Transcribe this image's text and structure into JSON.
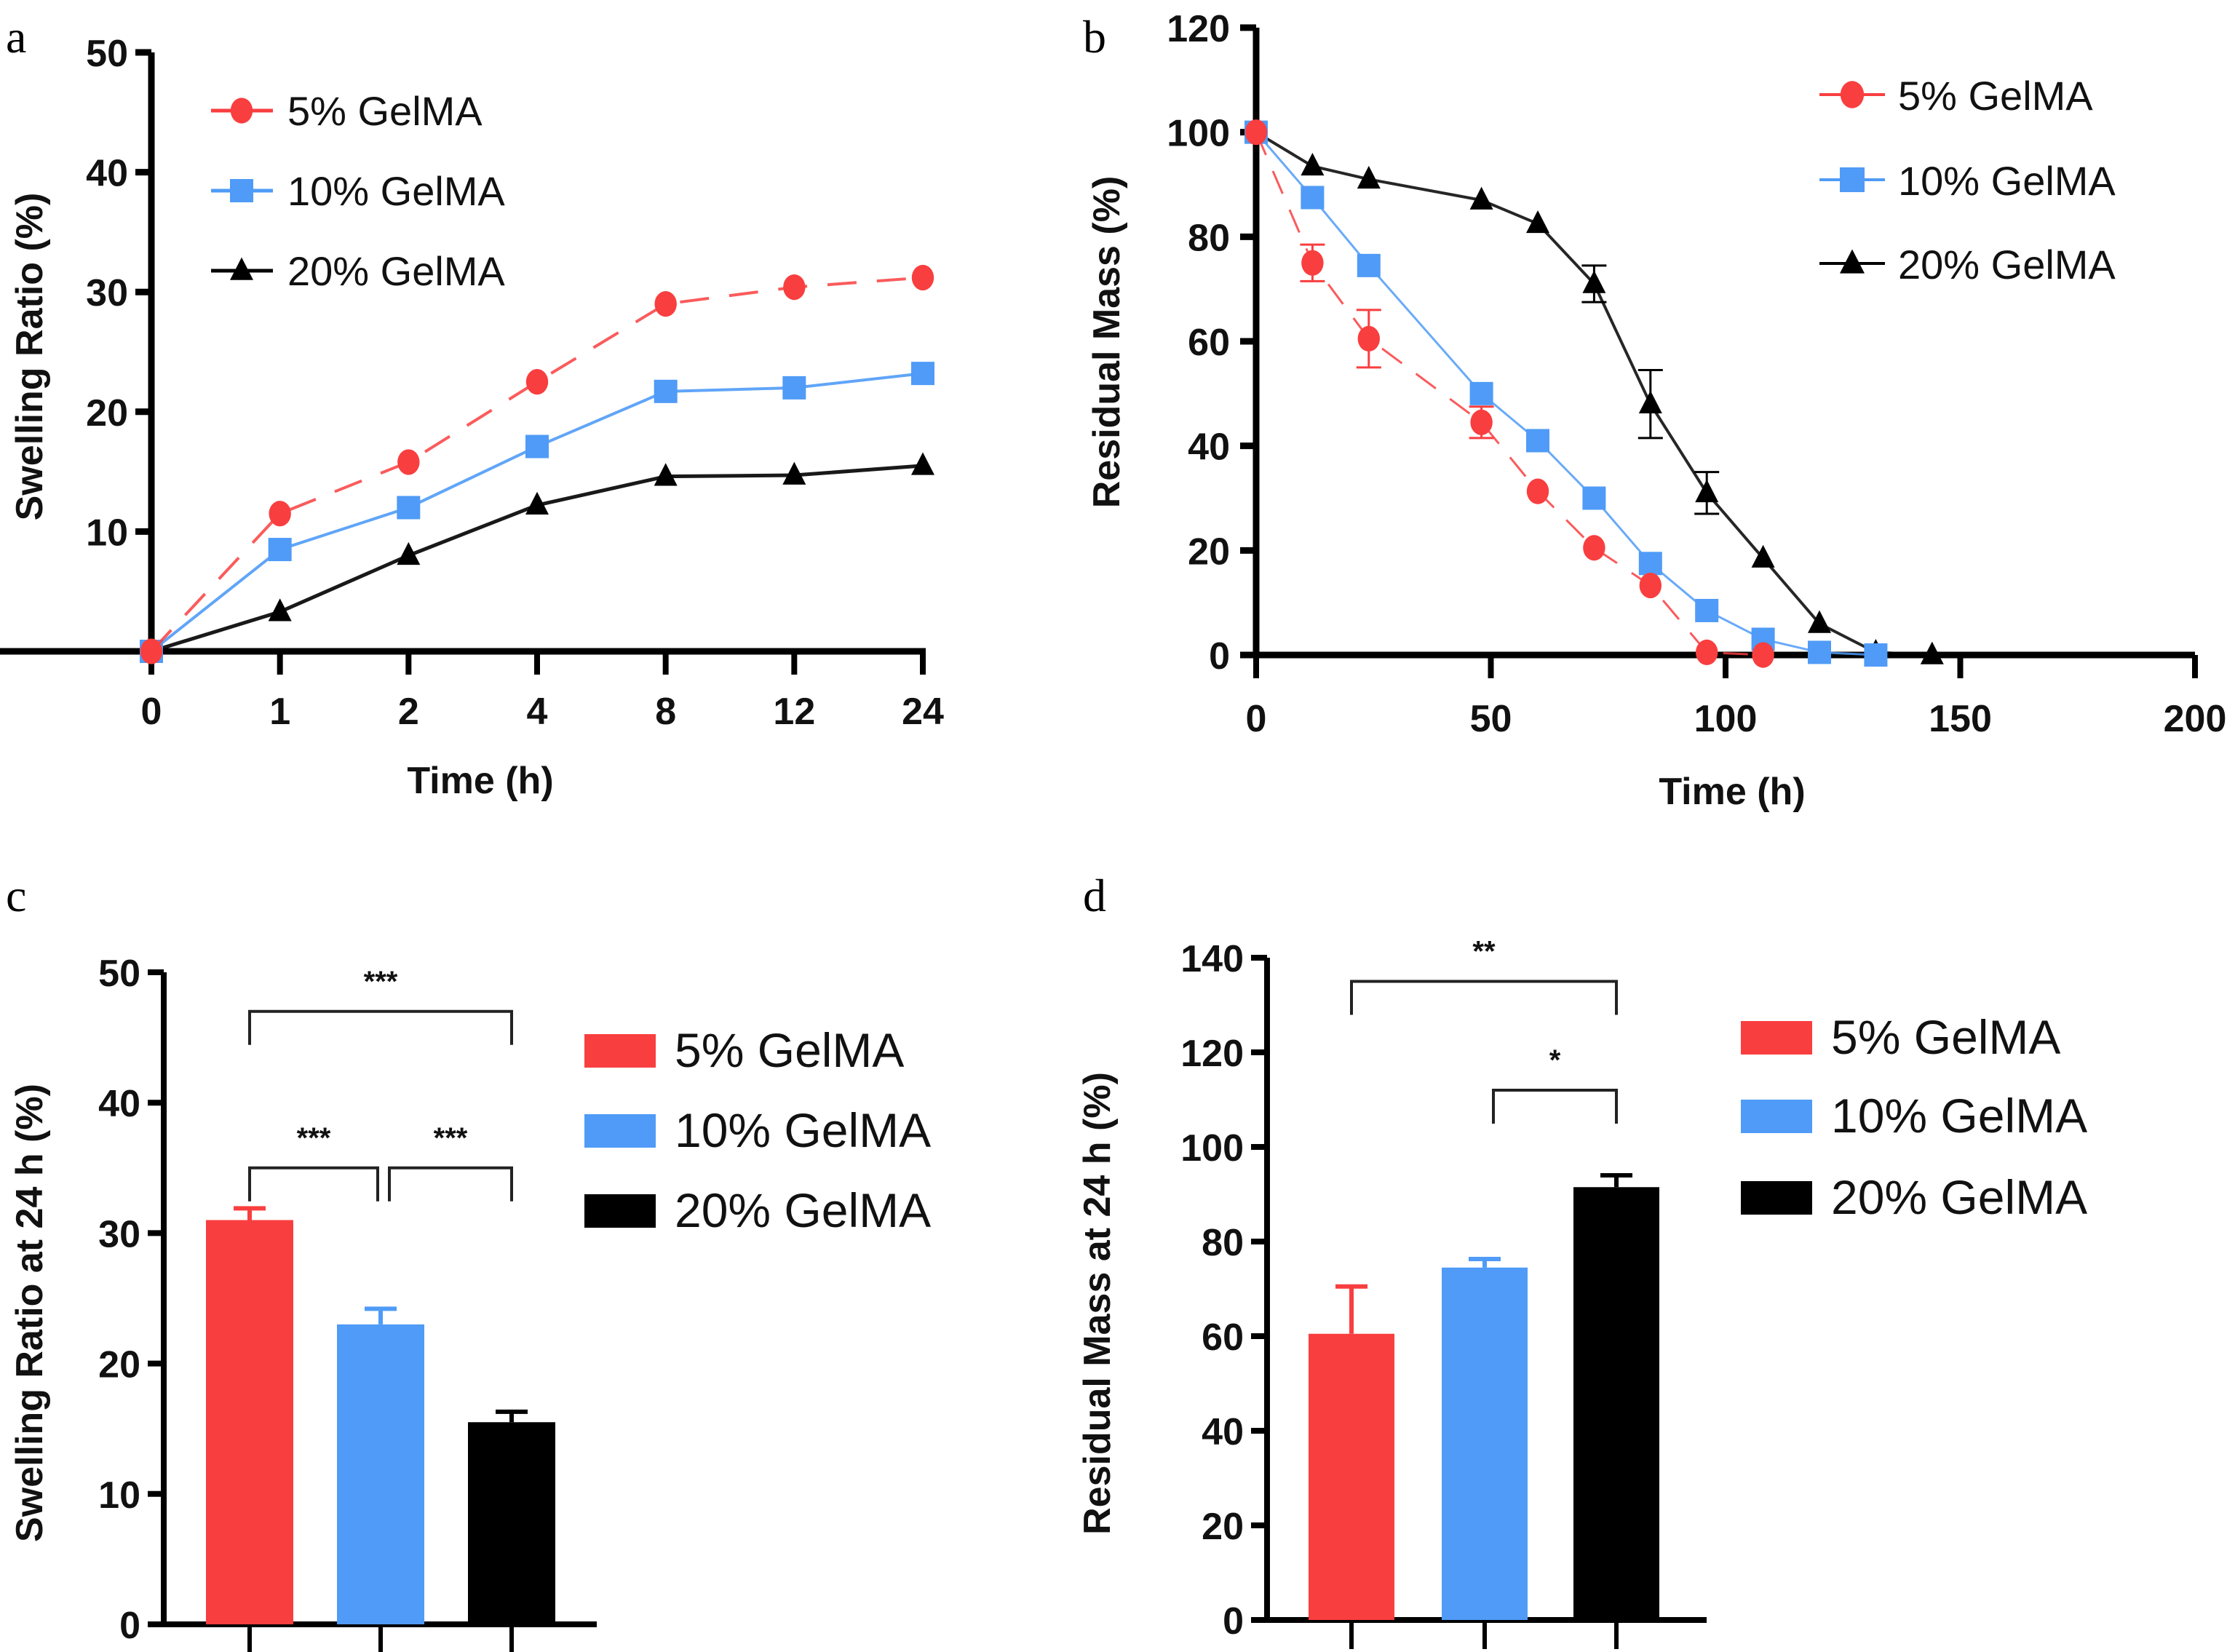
{
  "colors": {
    "s5": "#F93E3F",
    "s10": "#4F9BF7",
    "s20": "#000000"
  },
  "chart_data": [
    {
      "panel": "a",
      "type": "line",
      "title": "",
      "xlabel": "Time (h)",
      "ylabel": "Swelling Ratio (%)",
      "categories": [
        "0",
        "1",
        "2",
        "4",
        "8",
        "12",
        "24"
      ],
      "yticks": [
        "10",
        "20",
        "30",
        "40",
        "50"
      ],
      "ylim": [
        0,
        50
      ],
      "legend_position": "top-left",
      "series": [
        {
          "name": "5% GelMA",
          "marker": "circle",
          "line": "dashed",
          "values": [
            0,
            11.5,
            15.8,
            22.5,
            29.0,
            30.4,
            31.2
          ]
        },
        {
          "name": "10% GelMA",
          "marker": "square",
          "line": "solid",
          "values": [
            0,
            8.5,
            12.0,
            17.1,
            21.7,
            22.0,
            23.2
          ]
        },
        {
          "name": "20% GelMA",
          "marker": "triangle",
          "line": "solid",
          "values": [
            0,
            3.3,
            8.0,
            12.2,
            14.6,
            14.7,
            15.5
          ]
        }
      ]
    },
    {
      "panel": "b",
      "type": "line",
      "title": "",
      "xlabel": "Time (h)",
      "ylabel": "Residual Mass (%)",
      "xticks": [
        "0",
        "50",
        "100",
        "150",
        "200"
      ],
      "yticks": [
        "0",
        "20",
        "40",
        "60",
        "80",
        "100",
        "120"
      ],
      "xlim": [
        0,
        200
      ],
      "ylim": [
        0,
        120
      ],
      "legend_position": "top-right",
      "series": [
        {
          "name": "5% GelMA",
          "marker": "circle",
          "line": "dashed",
          "x": [
            0,
            12,
            24,
            48,
            60,
            72,
            84,
            96,
            108
          ],
          "values": [
            100,
            75,
            60.5,
            44.5,
            31.3,
            20.5,
            13.3,
            0.5,
            0
          ],
          "errors": [
            0,
            3.5,
            5.5,
            3,
            0,
            0,
            0,
            0,
            0
          ]
        },
        {
          "name": "10% GelMA",
          "marker": "square",
          "line": "solid",
          "x": [
            0,
            12,
            24,
            48,
            60,
            72,
            84,
            96,
            108,
            120,
            132
          ],
          "values": [
            100,
            87.5,
            74.5,
            50,
            41,
            30,
            17.5,
            8.5,
            3,
            0.5,
            0
          ],
          "errors": [
            0,
            0,
            0,
            0,
            0,
            0,
            0,
            0,
            0,
            0,
            0
          ]
        },
        {
          "name": "20% GelMA",
          "marker": "triangle",
          "line": "solid",
          "x": [
            0,
            12,
            24,
            48,
            60,
            72,
            84,
            96,
            108,
            120,
            132,
            144
          ],
          "values": [
            100,
            93.5,
            91,
            87,
            82.5,
            71,
            48,
            31,
            18.5,
            6,
            0.5,
            0
          ],
          "errors": [
            0,
            0,
            0,
            0,
            0,
            3.5,
            6.5,
            4,
            0,
            0,
            0,
            0
          ]
        }
      ]
    },
    {
      "panel": "c",
      "type": "bar",
      "title": "",
      "xlabel": "",
      "ylabel": "Swelling Ratio at 24 h (%)",
      "categories": [
        "5% GelMA",
        "10% GelMA",
        "20% GelMA"
      ],
      "values": [
        31.0,
        23.0,
        15.5
      ],
      "errors": [
        0.9,
        1.2,
        0.8
      ],
      "yticks": [
        "0",
        "10",
        "20",
        "30",
        "40",
        "50"
      ],
      "ylim": [
        0,
        50
      ],
      "legend_position": "right",
      "significance": [
        {
          "from": 0,
          "to": 2,
          "label": "***",
          "level": 47
        },
        {
          "from": 0,
          "to": 1,
          "label": "***",
          "level": 35
        },
        {
          "from": 1,
          "to": 2,
          "label": "***",
          "level": 35
        }
      ]
    },
    {
      "panel": "d",
      "type": "bar",
      "title": "",
      "xlabel": "",
      "ylabel": "Residual Mass at 24 h (%)",
      "categories": [
        "5% GelMA",
        "10% GelMA",
        "20% GelMA"
      ],
      "values": [
        60.5,
        74.5,
        91.5
      ],
      "errors": [
        10,
        1.8,
        2.5
      ],
      "yticks": [
        "0",
        "20",
        "40",
        "60",
        "80",
        "100",
        "120",
        "140"
      ],
      "ylim": [
        0,
        140
      ],
      "legend_position": "right",
      "significance": [
        {
          "from": 0,
          "to": 2,
          "label": "**",
          "level": 135
        },
        {
          "from": 1,
          "to": 2,
          "label": "*",
          "level": 112
        }
      ]
    }
  ],
  "panels": {
    "a": {
      "letter": "a"
    },
    "b": {
      "letter": "b"
    },
    "c": {
      "letter": "c"
    },
    "d": {
      "letter": "d"
    }
  }
}
